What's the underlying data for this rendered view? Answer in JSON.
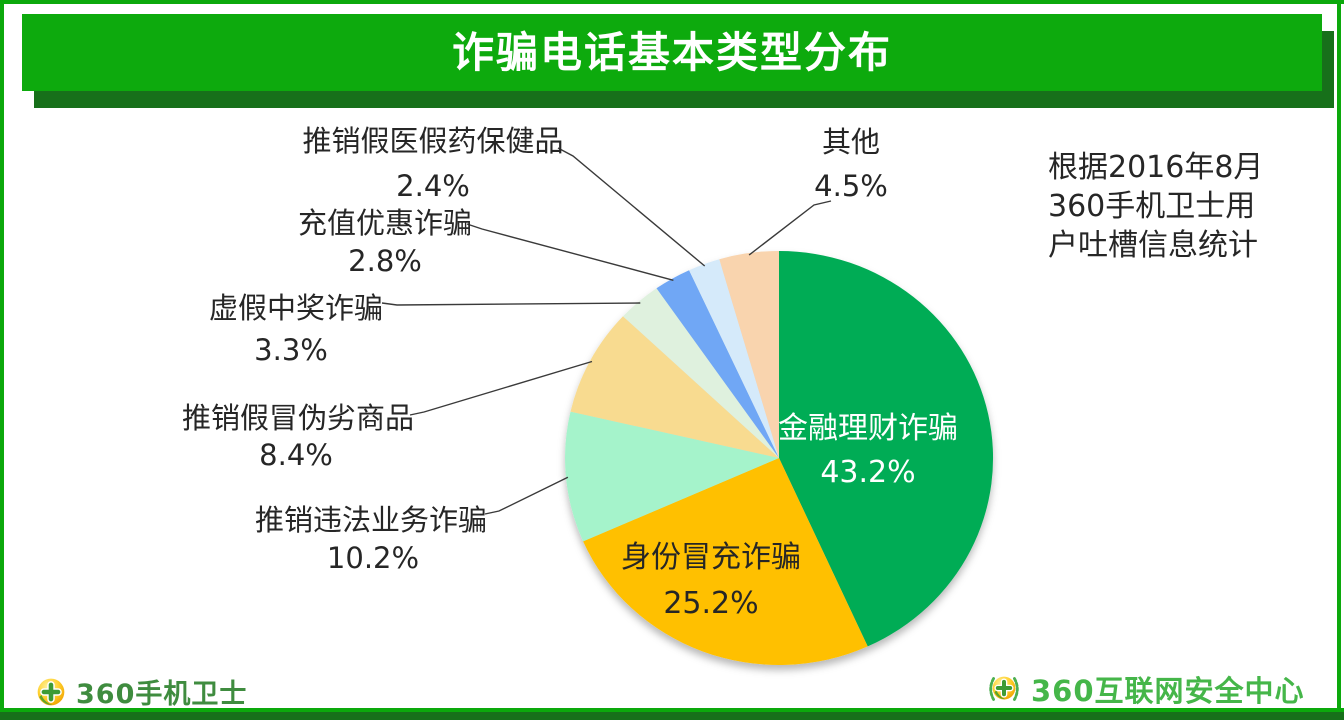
{
  "page": {
    "title": "诈骗电话基本类型分布",
    "note_lines": [
      "根据2016年8月",
      "360手机卫士用",
      "户吐槽信息统计"
    ],
    "footer": {
      "left_text": "360手机卫士",
      "right_text": "360互联网安全中心"
    },
    "colors": {
      "frame_green": "#0CA90C",
      "banner_green": "#0DAA0D",
      "banner_shadow": "#17701A",
      "footer_bar": "#17701A",
      "note_text": "#262626",
      "leader_line": "#3A3A3A"
    }
  },
  "chart_data": {
    "type": "pie",
    "title": "诈骗电话基本类型分布",
    "unit": "%",
    "start_angle_deg": 0,
    "direction": "clockwise",
    "legend_position": "none",
    "slices": [
      {
        "label": "金融理财诈骗",
        "value": 43.2,
        "color": "#00AC55",
        "label_position": "inside",
        "label_color": "#FFFFFF"
      },
      {
        "label": "身份冒充诈骗",
        "value": 25.2,
        "color": "#FFC000",
        "label_position": "inside",
        "label_color": "#262626"
      },
      {
        "label": "推销违法业务诈骗",
        "value": 10.2,
        "color": "#A5F3CB",
        "label_position": "callout",
        "label_color": "#262626"
      },
      {
        "label": "推销假冒伪劣商品",
        "value": 8.4,
        "color": "#F8DB90",
        "label_position": "callout",
        "label_color": "#262626"
      },
      {
        "label": "虚假中奖诈骗",
        "value": 3.3,
        "color": "#DFF1DE",
        "label_position": "callout",
        "label_color": "#262626"
      },
      {
        "label": "充值优惠诈骗",
        "value": 2.8,
        "color": "#6FA7F5",
        "label_position": "callout",
        "label_color": "#262626"
      },
      {
        "label": "推销假医假药保健品",
        "value": 2.4,
        "color": "#D5EAFA",
        "label_position": "callout",
        "label_color": "#262626"
      },
      {
        "label": "其他",
        "value": 4.5,
        "color": "#F9D4AE",
        "label_position": "callout",
        "label_color": "#262626"
      }
    ]
  }
}
